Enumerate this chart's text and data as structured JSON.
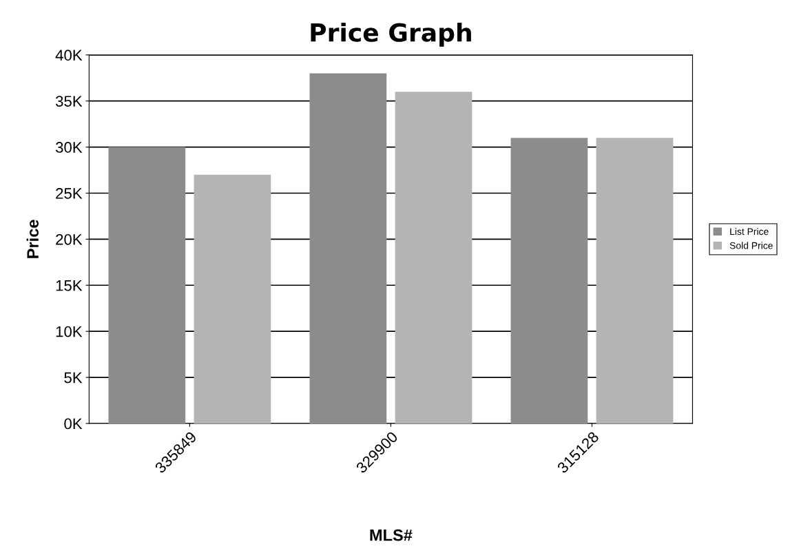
{
  "chart_data": {
    "type": "bar",
    "title": "Price Graph",
    "xlabel": "MLS#",
    "ylabel": "Price",
    "categories": [
      "335849",
      "329900",
      "315128"
    ],
    "series": [
      {
        "name": "List Price",
        "color": "#8c8c8c",
        "values": [
          30000,
          38000,
          31000
        ]
      },
      {
        "name": "Sold Price",
        "color": "#b4b4b4",
        "values": [
          27000,
          36000,
          31000
        ]
      }
    ],
    "ylim": [
      0,
      40000
    ],
    "yticks": [
      {
        "value": 0,
        "label": "0K"
      },
      {
        "value": 5000,
        "label": "5K"
      },
      {
        "value": 10000,
        "label": "10K"
      },
      {
        "value": 15000,
        "label": "15K"
      },
      {
        "value": 20000,
        "label": "20K"
      },
      {
        "value": 25000,
        "label": "25K"
      },
      {
        "value": 30000,
        "label": "30K"
      },
      {
        "value": 35000,
        "label": "35K"
      },
      {
        "value": 40000,
        "label": "40K"
      }
    ],
    "grid": "y",
    "legend": "right"
  }
}
